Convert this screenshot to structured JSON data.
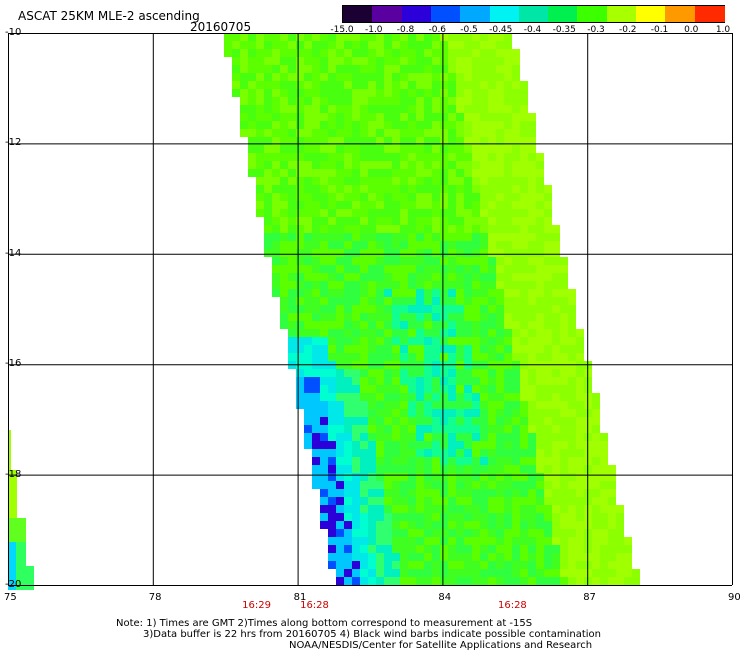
{
  "title": "ASCAT 25KM MLE-2 ascending",
  "date": "20160705",
  "colorbar": {
    "labels": [
      "-15.0",
      "-1.0",
      "-0.8",
      "-0.6",
      "-0.5",
      "-0.45",
      "-0.4",
      "-0.35",
      "-0.3",
      "-0.2",
      "-0.1",
      "0.0",
      "1.0"
    ],
    "colors": [
      "#1a0033",
      "#5b00a0",
      "#2c00d8",
      "#0050ff",
      "#00a8ff",
      "#00f2f2",
      "#00e6a6",
      "#00f050",
      "#3cff00",
      "#a8ff00",
      "#ffff00",
      "#ff9900",
      "#ff2a00"
    ]
  },
  "map": {
    "lon_ticks": [
      "75",
      "78",
      "81",
      "84",
      "87",
      "90"
    ],
    "lat_ticks": [
      "-10",
      "-12",
      "-14",
      "-16",
      "-18",
      "-20"
    ],
    "lon_range": [
      75,
      90
    ],
    "lat_range": [
      -20,
      -10
    ],
    "time_labels": [
      {
        "text": "16:29",
        "lon": 80.1
      },
      {
        "text": "16:28",
        "lon": 81.3
      },
      {
        "text": "16:28",
        "lon": 85.4
      }
    ]
  },
  "notes": [
    "Note: 1) Times are GMT 2)Times along bottom correspond to measurement at -15S",
    "3)Data buffer is 22 hrs from 20160705 4) Black wind barbs indicate possible contamination",
    "NOAA/NESDIS/Center for Satellite Applications and Research"
  ]
}
